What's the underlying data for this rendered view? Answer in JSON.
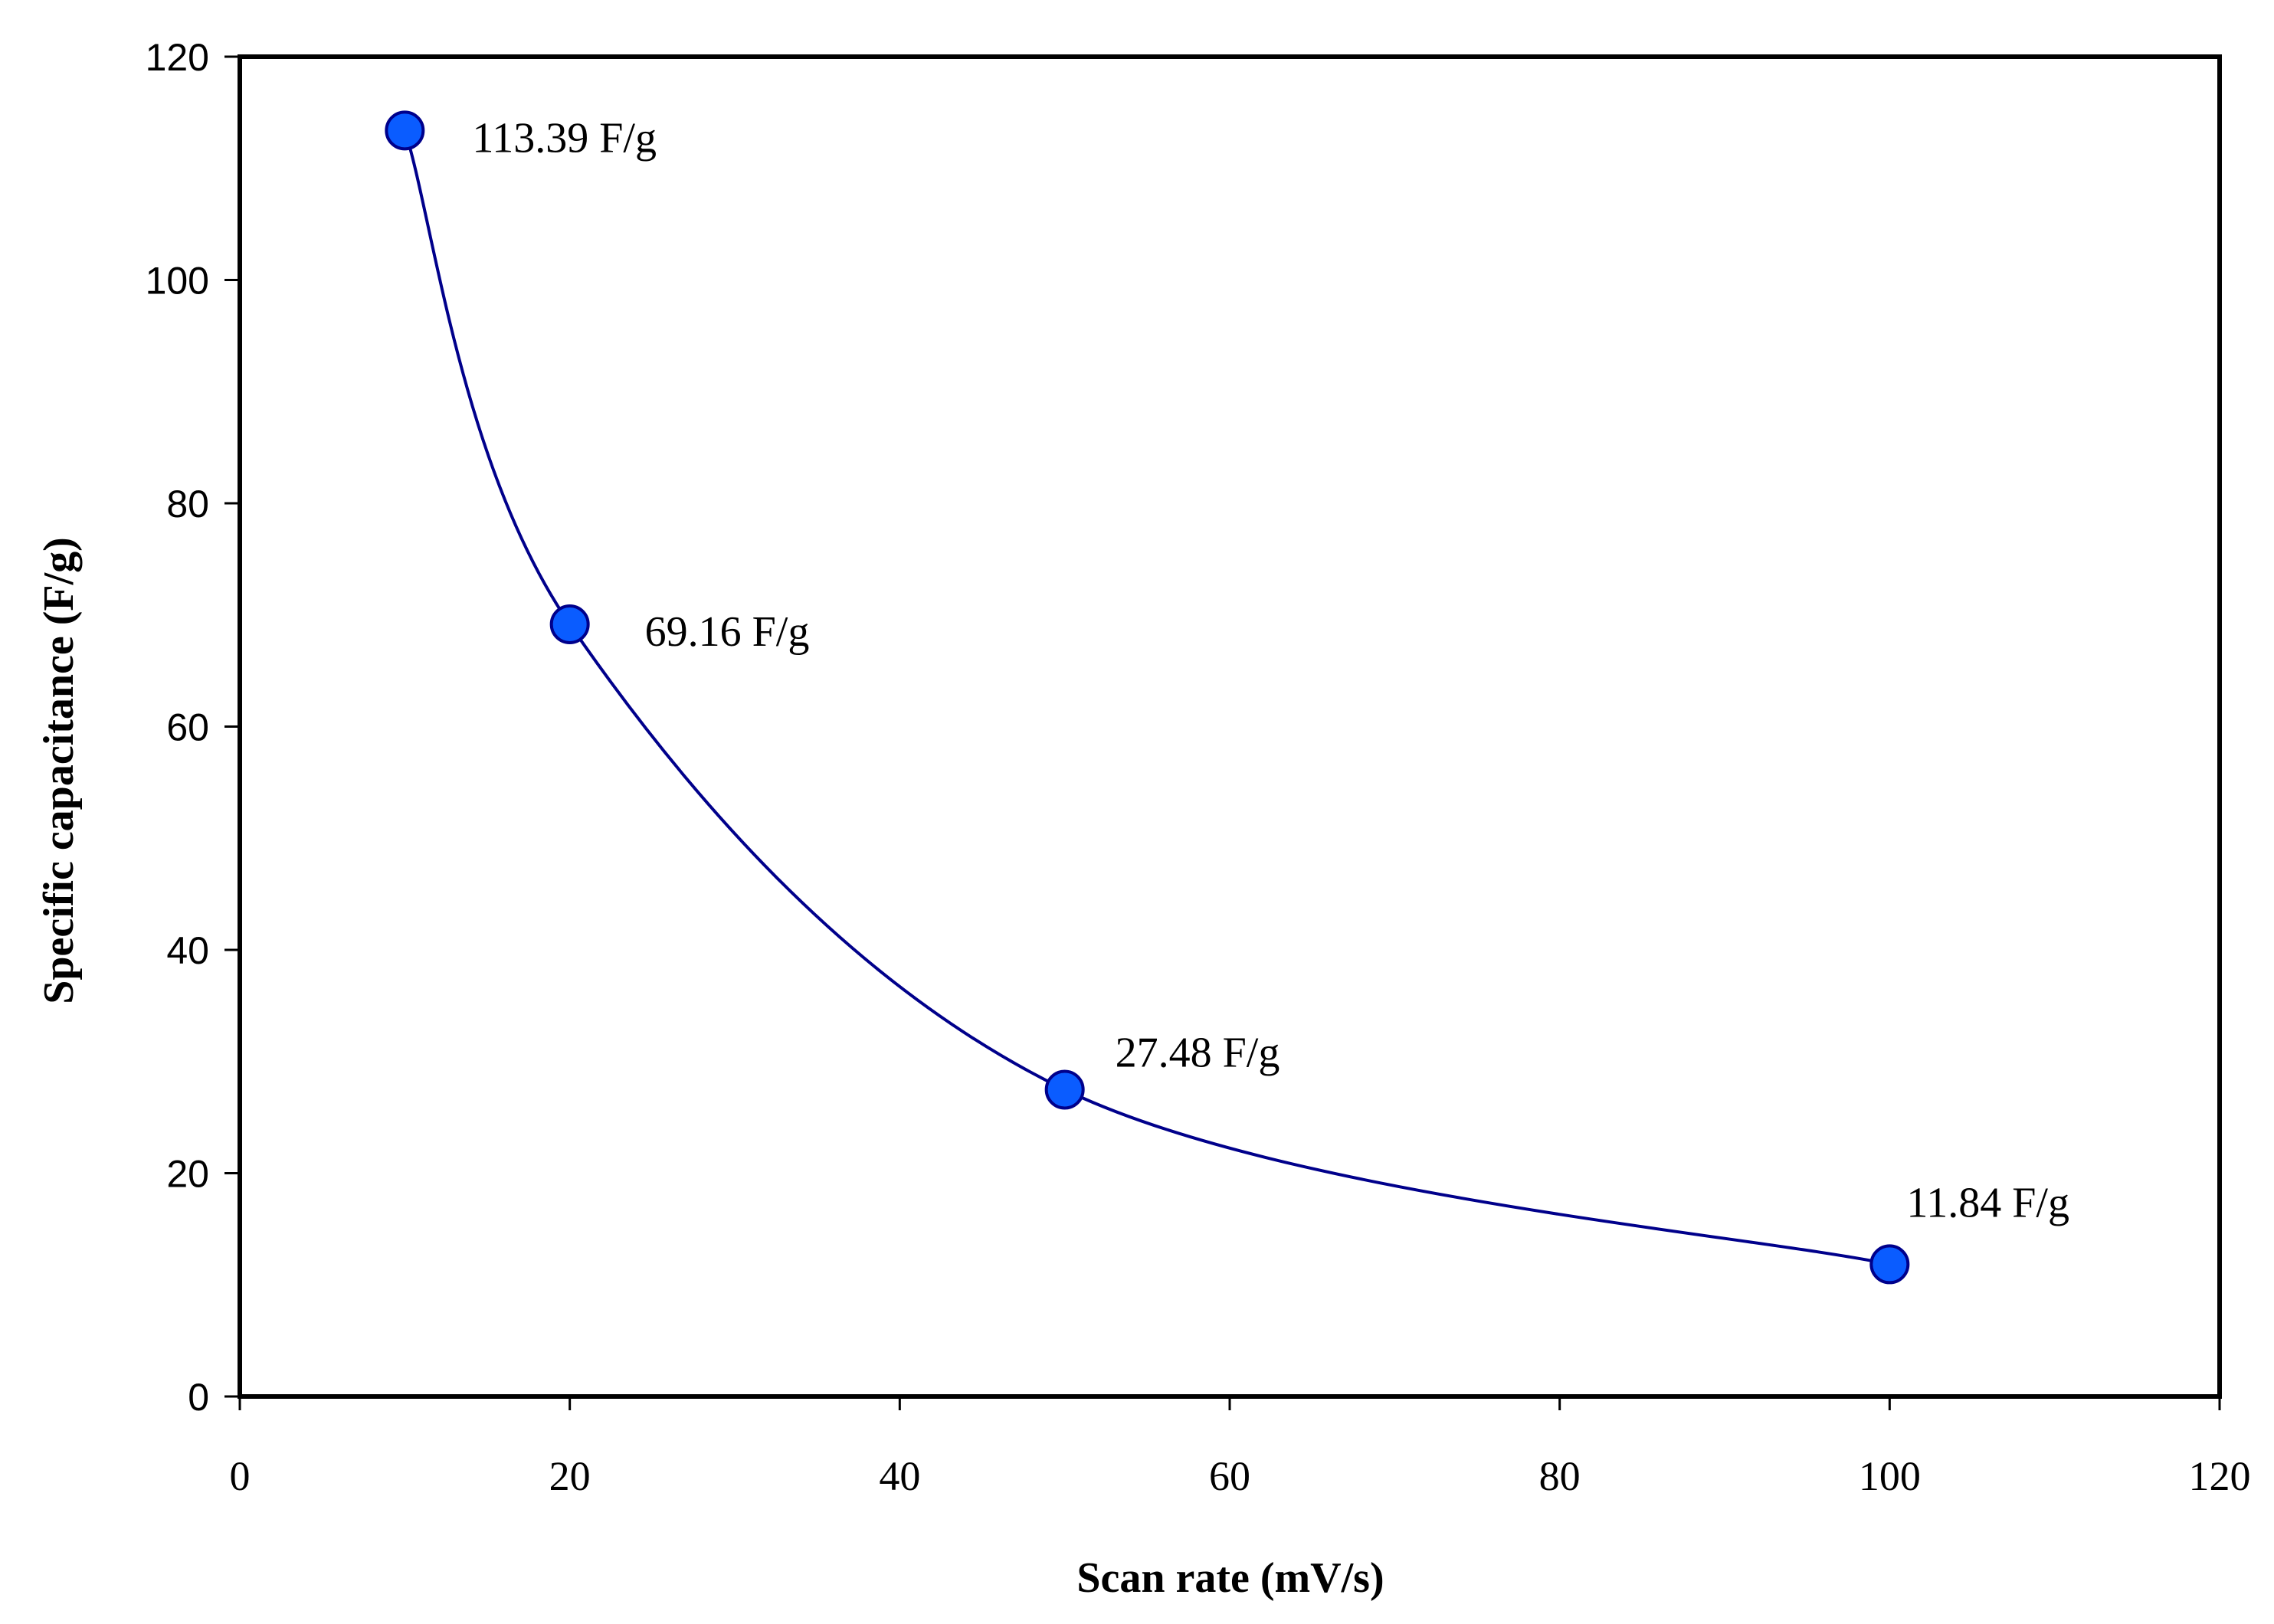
{
  "chart_data": {
    "type": "scatter",
    "title": "",
    "xlabel": "Scan rate (mV/s)",
    "ylabel": "Specific capacitance (F/g)",
    "xlim": [
      0,
      120
    ],
    "ylim": [
      0,
      120
    ],
    "xticks": [
      0,
      20,
      40,
      60,
      80,
      100,
      120
    ],
    "yticks": [
      0,
      20,
      40,
      60,
      80,
      100,
      120
    ],
    "grid": false,
    "legend": "none",
    "series": [
      {
        "name": "Specific capacitance",
        "x": [
          10,
          20,
          50,
          100
        ],
        "y": [
          113.39,
          69.16,
          27.48,
          11.84
        ],
        "labels": [
          "113.39 F/g",
          "69.16 F/g",
          "27.48 F/g",
          "11.84 F/g"
        ],
        "line": "smooth",
        "line_color": "#00008b",
        "marker_color": "#0a5cff",
        "marker_edge_color": "#00008b"
      }
    ]
  }
}
